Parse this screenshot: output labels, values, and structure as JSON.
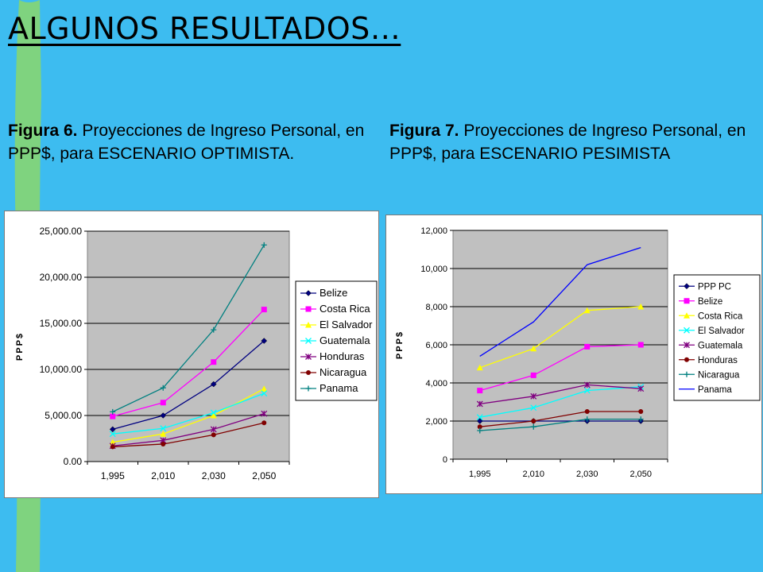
{
  "slide": {
    "title": "ALGUNOS RESULTADOS…",
    "caption1": {
      "label": "Figura 6.",
      "text": " Proyecciones de Ingreso Personal, en PPP$, para ESCENARIO OPTIMISTA."
    },
    "caption2": {
      "label": "Figura 7.",
      "text": " Proyecciones de Ingreso Personal, en PPP$, para ESCENARIO PESIMISTA"
    },
    "colors": {
      "background": "#3dbcf0",
      "stripe": "#7fd37f",
      "plot_area": "#c0c0c0"
    }
  },
  "chart_data": [
    {
      "type": "line",
      "title": "",
      "xlabel": "",
      "ylabel": "PPP$",
      "categories": [
        "1,995",
        "2,010",
        "2,030",
        "2,050"
      ],
      "ylim": [
        0,
        25000
      ],
      "yticks": [
        0,
        5000,
        10000,
        15000,
        20000,
        25000
      ],
      "ytick_labels": [
        "0.00",
        "5,000.00",
        "10,000.00",
        "15,000.00",
        "20,000.00",
        "25,000.00"
      ],
      "grid": true,
      "legend_position": "right",
      "series": [
        {
          "name": "Belize",
          "color": "#000080",
          "marker": "diamond",
          "values": [
            3500,
            5000,
            8400,
            13100
          ]
        },
        {
          "name": "Costa Rica",
          "color": "#ff00ff",
          "marker": "square",
          "values": [
            4900,
            6400,
            10800,
            16500
          ]
        },
        {
          "name": "El Salvador",
          "color": "#ffff00",
          "marker": "triangle",
          "values": [
            2100,
            3000,
            5000,
            7900
          ]
        },
        {
          "name": "Guatemala",
          "color": "#00ffff",
          "marker": "x",
          "values": [
            3000,
            3600,
            5300,
            7400
          ]
        },
        {
          "name": "Honduras",
          "color": "#800080",
          "marker": "star",
          "values": [
            1700,
            2300,
            3500,
            5200
          ]
        },
        {
          "name": "Nicaragua",
          "color": "#800000",
          "marker": "circle",
          "values": [
            1600,
            1900,
            2900,
            4200
          ]
        },
        {
          "name": "Panama",
          "color": "#008080",
          "marker": "plus",
          "values": [
            5400,
            8000,
            14300,
            23500
          ]
        }
      ]
    },
    {
      "type": "line",
      "title": "",
      "xlabel": "",
      "ylabel": "PPP$",
      "categories": [
        "1,995",
        "2,010",
        "2,030",
        "2,050"
      ],
      "ylim": [
        0,
        12000
      ],
      "yticks": [
        0,
        2000,
        4000,
        6000,
        8000,
        10000,
        12000
      ],
      "ytick_labels": [
        "0",
        "2,000",
        "4,000",
        "6,000",
        "8,000",
        "10,000",
        "12,000"
      ],
      "grid": true,
      "legend_position": "right",
      "series": [
        {
          "name": "PPP PC",
          "color": "#000080",
          "marker": "diamond",
          "values": [
            2000,
            2000,
            2000,
            2000
          ]
        },
        {
          "name": "Belize",
          "color": "#ff00ff",
          "marker": "square",
          "values": [
            3600,
            4400,
            5900,
            6000
          ]
        },
        {
          "name": "Costa Rica",
          "color": "#ffff00",
          "marker": "triangle",
          "values": [
            4800,
            5800,
            7800,
            8000
          ]
        },
        {
          "name": "El Salvador",
          "color": "#00ffff",
          "marker": "x",
          "values": [
            2200,
            2700,
            3600,
            3800
          ]
        },
        {
          "name": "Guatemala",
          "color": "#800080",
          "marker": "star",
          "values": [
            2900,
            3300,
            3900,
            3700
          ]
        },
        {
          "name": "Honduras",
          "color": "#800000",
          "marker": "circle",
          "values": [
            1700,
            2000,
            2500,
            2500
          ]
        },
        {
          "name": "Nicaragua",
          "color": "#008080",
          "marker": "plus",
          "values": [
            1500,
            1700,
            2100,
            2100
          ]
        },
        {
          "name": "Panama",
          "color": "#0000ff",
          "marker": "none",
          "values": [
            5400,
            7200,
            10200,
            11100
          ]
        }
      ]
    }
  ]
}
